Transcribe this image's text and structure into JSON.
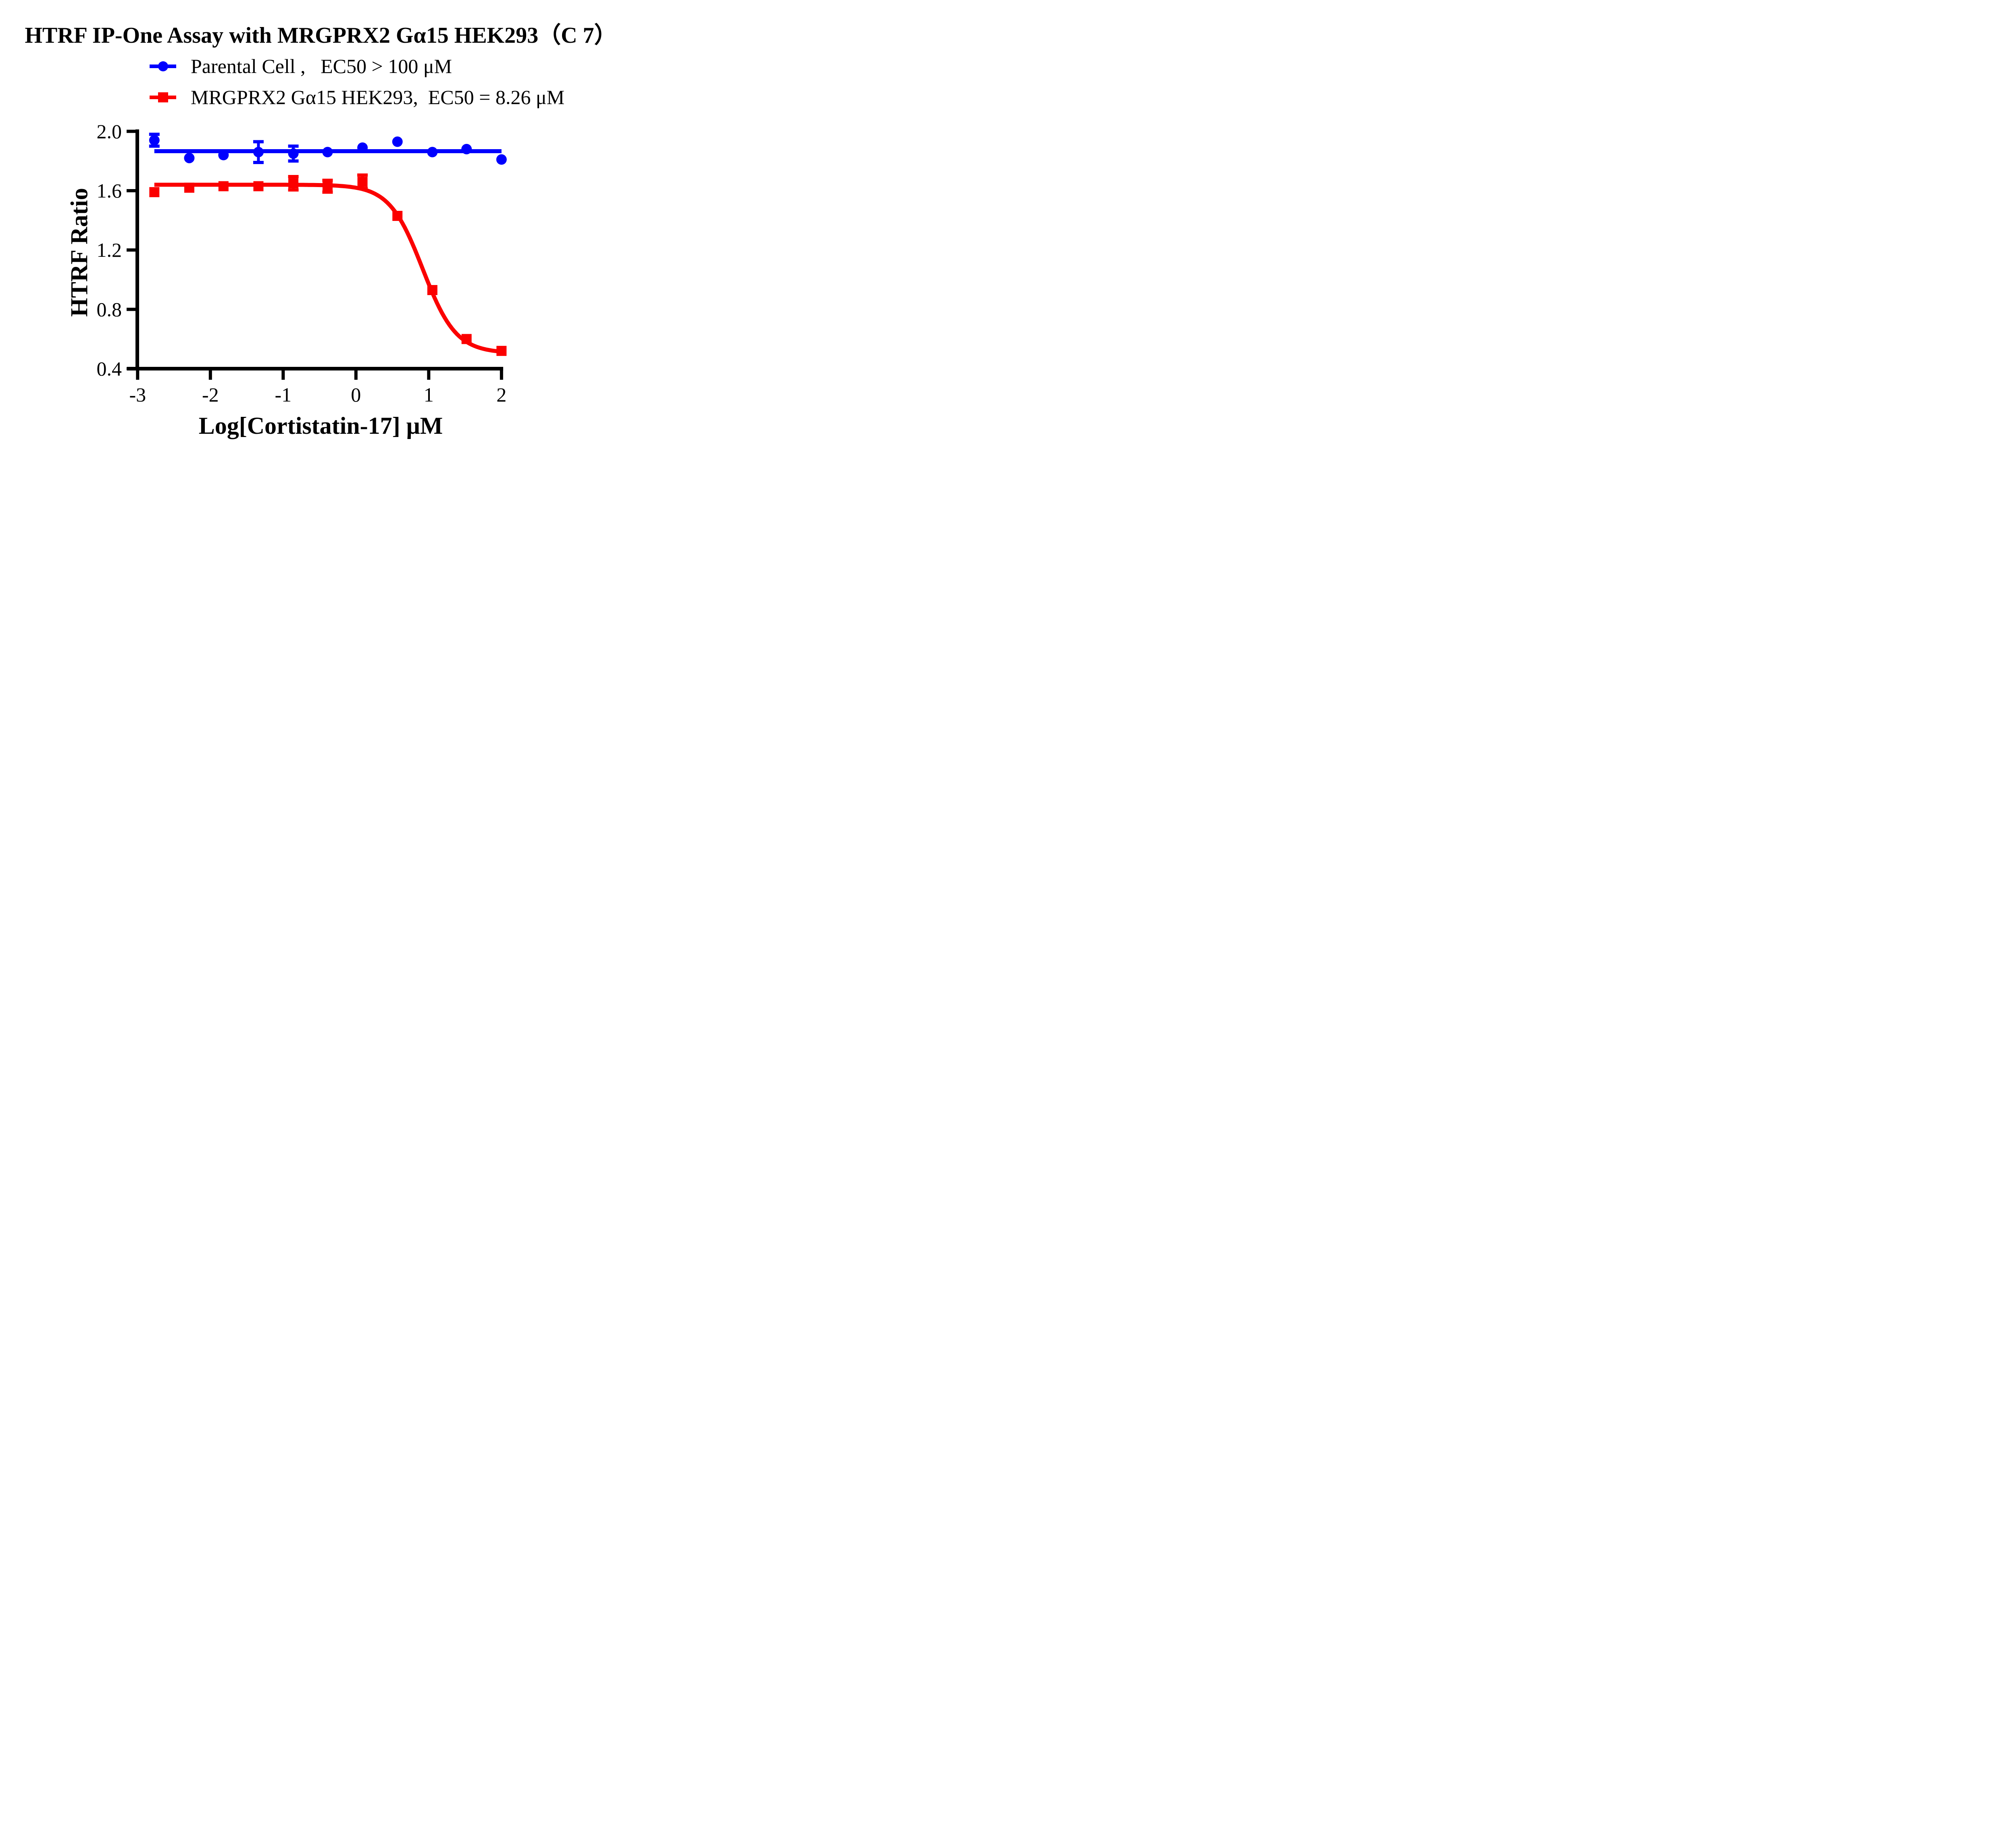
{
  "title": "HTRF IP-One Assay with MRGPRX2 Gα15 HEK293（C 7）",
  "legend": {
    "items": [
      {
        "label": "Parental Cell ,   EC50 > 100 μM",
        "color": "#0000FE",
        "marker": "circle"
      },
      {
        "label": "MRGPRX2 Gα15 HEK293,  EC50 = 8.26 μM",
        "color": "#FB0000",
        "marker": "square"
      }
    ]
  },
  "chart_data": {
    "type": "scatter",
    "title": "HTRF IP-One Assay with MRGPRX2 Gα15 HEK293（C 7）",
    "xlabel": "Log[Cortistatin-17] μM",
    "ylabel": "HTRF Ratio",
    "xlim": [
      -3.05,
      2.15
    ],
    "ylim": [
      0.4,
      2.0
    ],
    "grid": false,
    "legend_position": "top-left",
    "x_ticks": [
      {
        "label": "-3",
        "value": -3
      },
      {
        "label": "-2",
        "value": -2
      },
      {
        "label": "-1",
        "value": -1
      },
      {
        "label": "0",
        "value": 0
      },
      {
        "label": "1",
        "value": 1
      },
      {
        "label": "2",
        "value": 2
      }
    ],
    "y_ticks": [
      {
        "label": "2.0",
        "value": 2.0
      },
      {
        "label": "1.6",
        "value": 1.6
      },
      {
        "label": "1.2",
        "value": 1.2
      },
      {
        "label": "0.8",
        "value": 0.8
      },
      {
        "label": "0.4",
        "value": 0.4
      }
    ],
    "x_log": [
      -2.77,
      -2.29,
      -1.82,
      -1.34,
      -0.86,
      -0.39,
      0.09,
      0.57,
      1.05,
      1.52,
      2.0
    ],
    "series": [
      {
        "name": "Parental Cell",
        "ec50_text": "EC50 > 100 μM",
        "color": "#0000FE",
        "marker": "circle",
        "values": [
          1.94,
          1.82,
          1.84,
          1.86,
          1.85,
          1.86,
          1.89,
          1.93,
          1.86,
          1.88,
          1.81
        ],
        "errors": [
          0.04,
          null,
          null,
          0.07,
          0.05,
          null,
          null,
          null,
          null,
          null,
          null
        ],
        "fit": {
          "type": "constant",
          "y": 1.866
        }
      },
      {
        "name": "MRGPRX2 Gα15 HEK293",
        "ec50_text": "EC50 = 8.26 μM",
        "color": "#FB0000",
        "marker": "square",
        "values": [
          1.59,
          1.62,
          1.63,
          1.63,
          1.65,
          1.63,
          1.66,
          1.43,
          0.93,
          0.6,
          0.52
        ],
        "errors": [
          null,
          null,
          null,
          null,
          0.045,
          0.04,
          0.045,
          null,
          null,
          null,
          null
        ],
        "fit": {
          "type": "sigmoid4pl",
          "top": 1.64,
          "bottom": 0.505,
          "log_ec50": 0.917,
          "hill": 1.9
        }
      }
    ]
  }
}
